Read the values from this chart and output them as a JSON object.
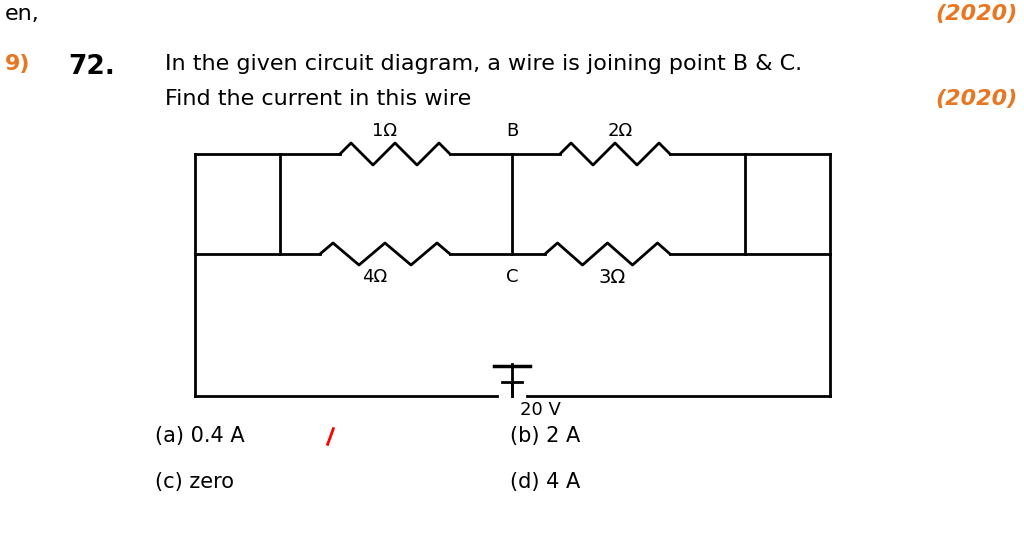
{
  "title_number": "72.",
  "title_text": "In the given circuit diagram, a wire is joining point B & C.",
  "title_text2": "Find the current in this wire",
  "year_text1": "(2020)",
  "year_text2": "(2020)",
  "options": [
    "(a) 0.4 A",
    "(b) 2 A",
    "(c) zero",
    "(d) 4 A"
  ],
  "R1": "1Ω",
  "R2": "2Ω",
  "R3": "4Ω",
  "R4": "3Ω",
  "voltage": "20 V",
  "node_B": "B",
  "node_C": "C",
  "text_color": "#000000",
  "orange_color": "#E87722",
  "bg_color": "#ffffff",
  "font_size_body": 16,
  "font_size_num": 19,
  "font_size_circuit": 13,
  "font_size_options": 15,
  "lw": 2.0
}
